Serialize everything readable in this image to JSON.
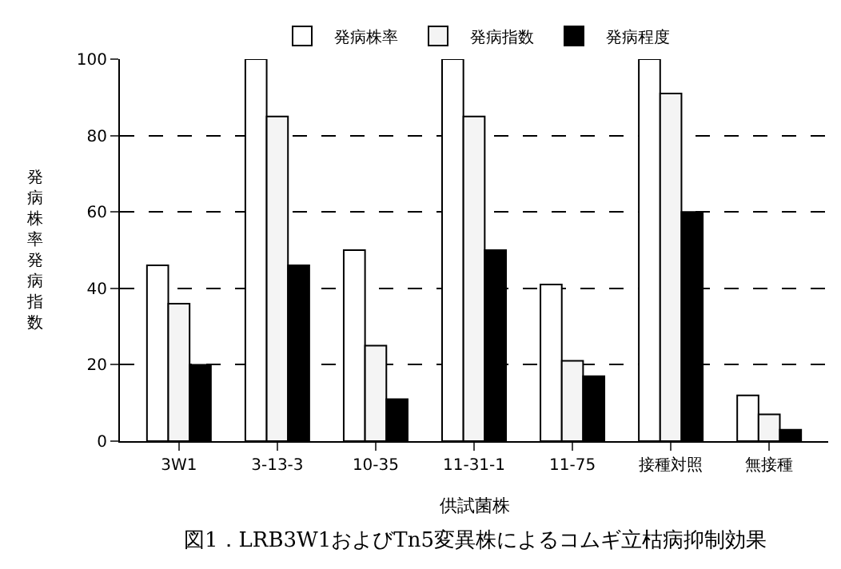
{
  "chart_data": {
    "type": "bar",
    "title": "図1．LRB3W1およびTn5変異株によるコムギ立枯病抑制効果",
    "xlabel": "供試菌株",
    "ylabel": "発病株率発病指数",
    "categories": [
      "3W1",
      "3-13-3",
      "10-35",
      "11-31-1",
      "11-75",
      "接種対照",
      "無接種"
    ],
    "series": [
      {
        "name": "発病株率",
        "color": "#ffffff",
        "values": [
          46,
          100,
          50,
          100,
          41,
          100,
          12
        ]
      },
      {
        "name": "発病指数",
        "color": "#f4f4f4",
        "values": [
          36,
          85,
          25,
          85,
          21,
          91,
          7
        ]
      },
      {
        "name": "発病程度",
        "color": "#000000",
        "values": [
          20,
          46,
          11,
          50,
          17,
          60,
          3
        ]
      }
    ],
    "ylim": [
      0,
      100
    ],
    "yticks": [
      0,
      20,
      40,
      60,
      80,
      100
    ],
    "grid": "y",
    "legend": "top"
  }
}
